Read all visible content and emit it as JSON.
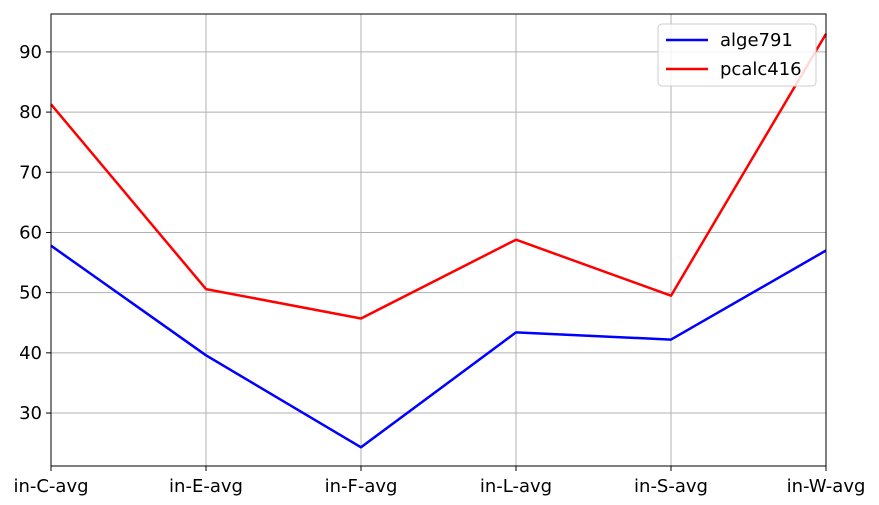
{
  "chart_data": {
    "type": "line",
    "categories": [
      "in-C-avg",
      "in-E-avg",
      "in-F-avg",
      "in-L-avg",
      "in-S-avg",
      "in-W-avg"
    ],
    "series": [
      {
        "name": "alge791",
        "color": "#0000ff",
        "values": [
          57.8,
          39.6,
          24.3,
          43.4,
          42.2,
          57.0
        ]
      },
      {
        "name": "pcalc416",
        "color": "#ff0000",
        "values": [
          81.3,
          50.6,
          45.7,
          58.8,
          49.5,
          93.0
        ]
      }
    ],
    "title": "",
    "xlabel": "",
    "ylabel": "",
    "ylim": [
      21.2,
      96.3
    ],
    "yticks": [
      30,
      40,
      50,
      60,
      70,
      80,
      90
    ],
    "grid": true,
    "legend": "top-right"
  }
}
